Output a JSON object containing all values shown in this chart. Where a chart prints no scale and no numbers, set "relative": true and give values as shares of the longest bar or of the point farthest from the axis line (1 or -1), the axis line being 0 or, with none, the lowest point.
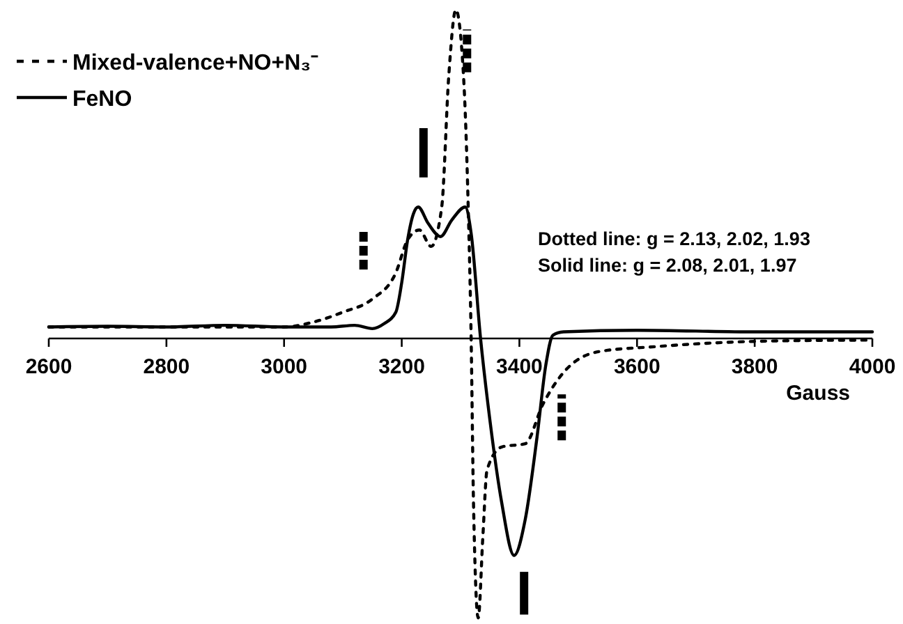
{
  "chart_data": {
    "type": "line",
    "relative": true,
    "xlabel": "Gauss",
    "xlim": [
      2600,
      4000
    ],
    "xticks": [
      2600,
      2800,
      3000,
      3200,
      3400,
      3600,
      3800,
      4000
    ],
    "grid": false,
    "legend": "top left",
    "annotations": [
      "Dotted line: g = 2.13, 2.02, 1.93",
      "Solid line: g = 2.08, 2.01, 1.97"
    ],
    "series": [
      {
        "name": "Mixed-valence+NO+N₃⁻",
        "color": "#000000",
        "line_style": "dotted",
        "x": [
          2600,
          2800,
          3000,
          3050,
          3100,
          3150,
          3190,
          3210,
          3230,
          3250,
          3268,
          3280,
          3292,
          3305,
          3313,
          3318,
          3322,
          3330,
          3338,
          3345,
          3370,
          3410,
          3440,
          3472,
          3535,
          3630,
          3749,
          3900,
          4000
        ],
        "values": [
          0.035,
          0.035,
          0.035,
          0.05,
          0.08,
          0.12,
          0.2,
          0.3,
          0.33,
          0.28,
          0.4,
          0.8,
          1,
          0.8,
          0.4,
          0,
          -0.5,
          -0.85,
          -0.6,
          -0.4,
          -0.33,
          -0.32,
          -0.2,
          -0.11,
          -0.04,
          -0.025,
          -0.012,
          -0.006,
          -0.005
        ]
      },
      {
        "name": "FeNO",
        "color": "#000000",
        "line_style": "solid",
        "x": [
          2600,
          2700,
          2800,
          2900,
          3000,
          3080,
          3120,
          3150,
          3170,
          3190,
          3200,
          3210,
          3220,
          3228,
          3245,
          3266,
          3285,
          3308,
          3318,
          3334,
          3350,
          3370,
          3391,
          3410,
          3430,
          3445,
          3457,
          3475,
          3600,
          3800,
          4000
        ],
        "values": [
          0.035,
          0.037,
          0.035,
          0.04,
          0.035,
          0.035,
          0.04,
          0.03,
          0.045,
          0.08,
          0.17,
          0.3,
          0.38,
          0.4,
          0.35,
          0.31,
          0.36,
          0.4,
          0.32,
          0,
          -0.25,
          -0.5,
          -0.66,
          -0.55,
          -0.3,
          -0.08,
          0.01,
          0.02,
          0.025,
          0.02,
          0.02
        ]
      },
      {
        "color": "#000000",
        "line_style": "dashed",
        "x": [
          3311,
          3311
        ],
        "values": [
          0.81,
          0.94
        ]
      },
      {
        "color": "#000000",
        "line_style": "solid",
        "x": [
          3237,
          3237
        ],
        "values": [
          0.49,
          0.64
        ]
      },
      {
        "color": "#000000",
        "line_style": "dashed",
        "x": [
          3135,
          3135
        ],
        "values": [
          0.21,
          0.33
        ]
      },
      {
        "color": "#000000",
        "line_style": "dashed",
        "x": [
          3472,
          3472
        ],
        "values": [
          -0.31,
          -0.17
        ]
      },
      {
        "color": "#000000",
        "line_style": "solid",
        "x": [
          3408,
          3408
        ],
        "values": [
          -0.84,
          -0.71
        ]
      }
    ]
  }
}
